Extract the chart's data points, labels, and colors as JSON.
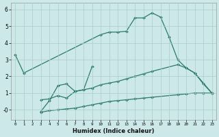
{
  "xlabel": "Humidex (Indice chaleur)",
  "bg_color": "#cce8e8",
  "grid_color": "#aacccc",
  "line_color": "#2a7a6a",
  "line1_x": [
    0,
    1,
    10,
    11,
    12,
    13,
    14,
    15,
    16,
    17,
    18,
    19,
    20,
    21,
    23
  ],
  "line1_y": [
    3.3,
    2.2,
    4.5,
    4.65,
    4.65,
    4.7,
    5.5,
    5.5,
    5.8,
    5.55,
    4.35,
    3.0,
    2.5,
    2.2,
    1.0
  ],
  "line2_x": [
    3,
    4,
    5,
    6,
    7,
    8,
    9
  ],
  "line2_y": [
    -0.1,
    0.55,
    1.45,
    1.55,
    1.1,
    1.2,
    2.6
  ],
  "line3_x": [
    3,
    4,
    5,
    6,
    7,
    8,
    9,
    10,
    11,
    12,
    13,
    14,
    15,
    16,
    19,
    20,
    21,
    22,
    23
  ],
  "line3_y": [
    0.6,
    0.65,
    0.85,
    0.7,
    1.1,
    1.2,
    1.3,
    1.5,
    1.6,
    1.7,
    1.85,
    2.0,
    2.15,
    2.3,
    2.7,
    2.5,
    2.2,
    1.55,
    1.0
  ],
  "line4_x": [
    3,
    4,
    5,
    6,
    7,
    8,
    9,
    10,
    11,
    12,
    13,
    14,
    15,
    16,
    19,
    20,
    21,
    22,
    23
  ],
  "line4_y": [
    -0.15,
    -0.05,
    0.0,
    0.05,
    0.1,
    0.2,
    0.3,
    0.4,
    0.5,
    0.55,
    0.6,
    0.65,
    0.7,
    0.75,
    0.9,
    0.95,
    1.0,
    1.0,
    1.0
  ],
  "ylim": [
    -0.6,
    6.4
  ],
  "xlim": [
    -0.5,
    23.5
  ],
  "yticks": [
    0,
    1,
    2,
    3,
    4,
    5,
    6
  ],
  "ytick_labels": [
    "-0",
    "1",
    "2",
    "3",
    "4",
    "5",
    "6"
  ],
  "xticks": [
    0,
    1,
    2,
    3,
    4,
    5,
    6,
    7,
    8,
    9,
    10,
    11,
    12,
    13,
    14,
    15,
    16,
    17,
    18,
    19,
    20,
    21,
    22,
    23
  ],
  "xtick_labels": [
    "0",
    "1",
    "2",
    "3",
    "4",
    "5",
    "6",
    "7",
    "8",
    "9",
    "10",
    "11",
    "12",
    "13",
    "14",
    "15",
    "16",
    "17",
    "18",
    "19",
    "20",
    "21",
    "22",
    "23"
  ]
}
